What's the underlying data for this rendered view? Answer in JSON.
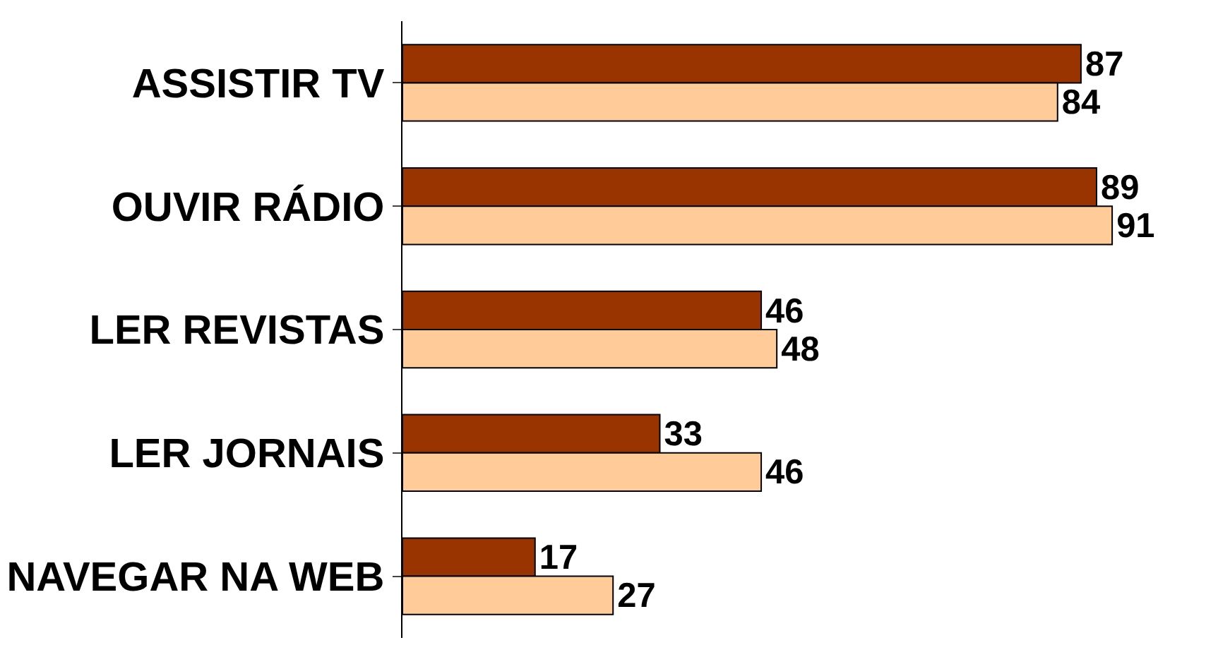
{
  "chart_data": {
    "type": "bar",
    "orientation": "horizontal",
    "categories": [
      "ASSISTIR TV",
      "OUVIR RÁDIO",
      "LER REVISTAS",
      "LER JORNAIS",
      "NAVEGAR NA WEB"
    ],
    "series": [
      {
        "color": "#993300",
        "values": [
          87,
          89,
          46,
          33,
          17
        ]
      },
      {
        "color": "#ffcc99",
        "values": [
          84,
          91,
          48,
          46,
          27
        ]
      }
    ],
    "data_labels": true
  }
}
